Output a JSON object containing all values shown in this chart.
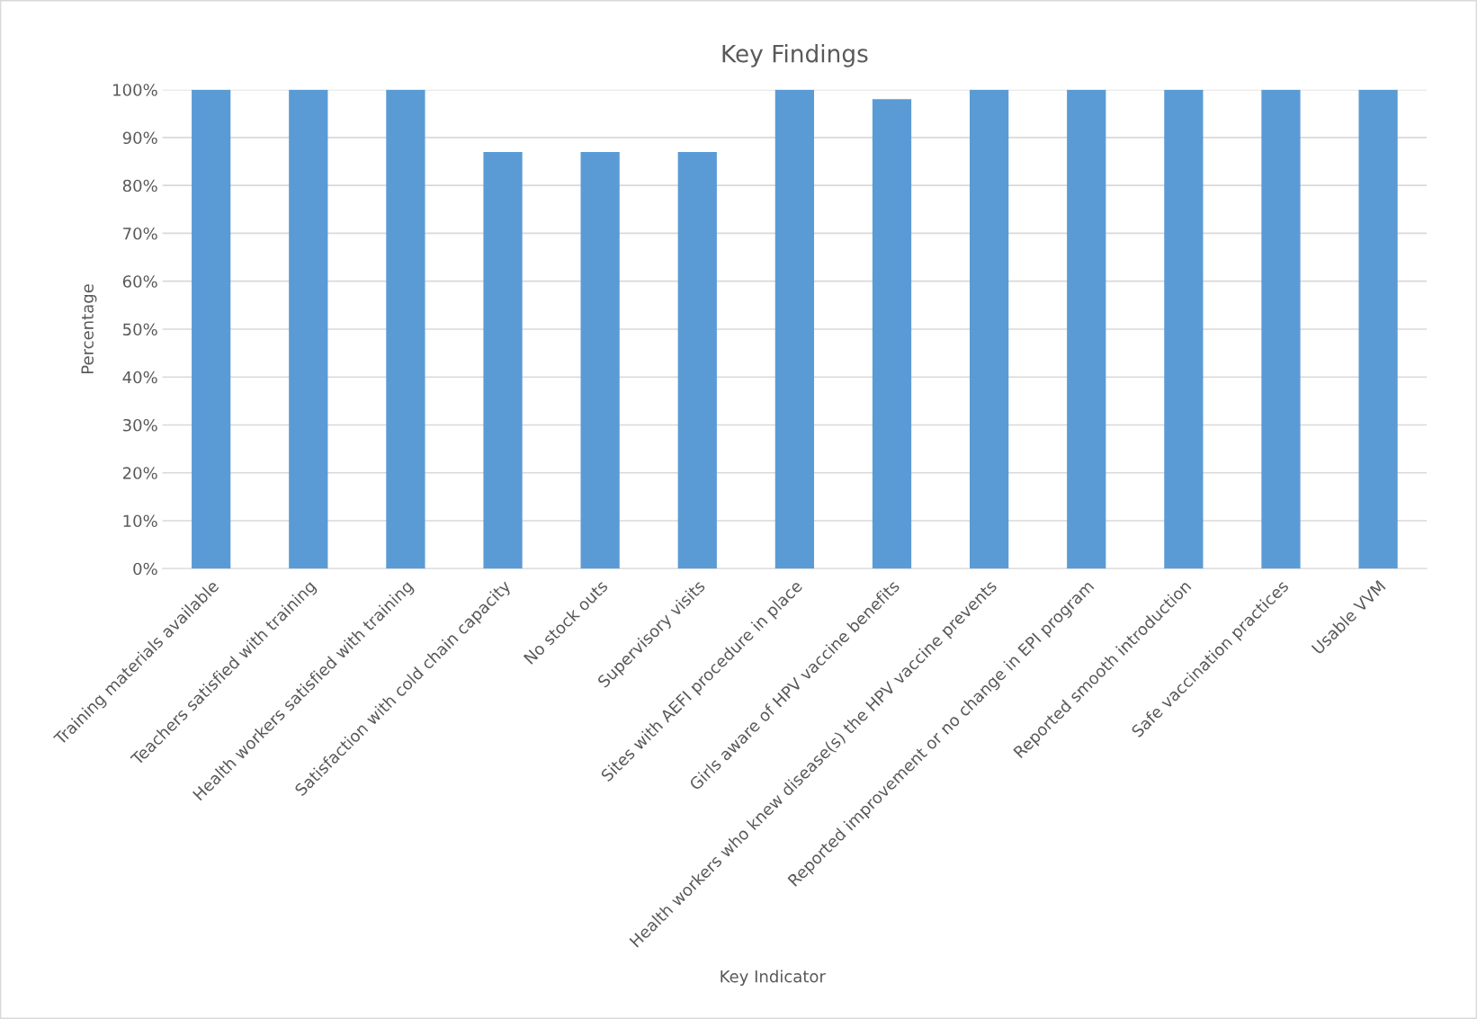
{
  "chart_data": {
    "type": "bar",
    "title": "Key Findings",
    "xlabel": "Key Indicator",
    "ylabel": "Percentage",
    "categories": [
      "Training materials available",
      "Teachers satisfied with training",
      "Health workers satisfied with training",
      "Satisfaction with cold chain capacity",
      "No stock outs",
      "Supervisory visits",
      "Sites with AEFI procedure in place",
      "Girls aware of HPV vaccine benefits",
      "Health workers who knew disease(s) the HPV vaccine prevents",
      "Reported improvement or no change in EPI program",
      "Reported smooth introduction",
      "Safe vaccination practices",
      "Usable VVM"
    ],
    "values": [
      100,
      100,
      100,
      87,
      87,
      87,
      100,
      98,
      100,
      100,
      100,
      100,
      100
    ],
    "color": "#5b9bd5",
    "ylim": [
      0,
      100
    ],
    "yticks": [
      {
        "value": 0,
        "label": "0%"
      },
      {
        "value": 10,
        "label": "10%"
      },
      {
        "value": 20,
        "label": "20%"
      },
      {
        "value": 30,
        "label": "30%"
      },
      {
        "value": 40,
        "label": "40%"
      },
      {
        "value": 50,
        "label": "50%"
      },
      {
        "value": 60,
        "label": "60%"
      },
      {
        "value": 70,
        "label": "70%"
      },
      {
        "value": 80,
        "label": "80%"
      },
      {
        "value": 90,
        "label": "90%"
      },
      {
        "value": 100,
        "label": "100%"
      }
    ],
    "grid": "y",
    "legend": false
  }
}
